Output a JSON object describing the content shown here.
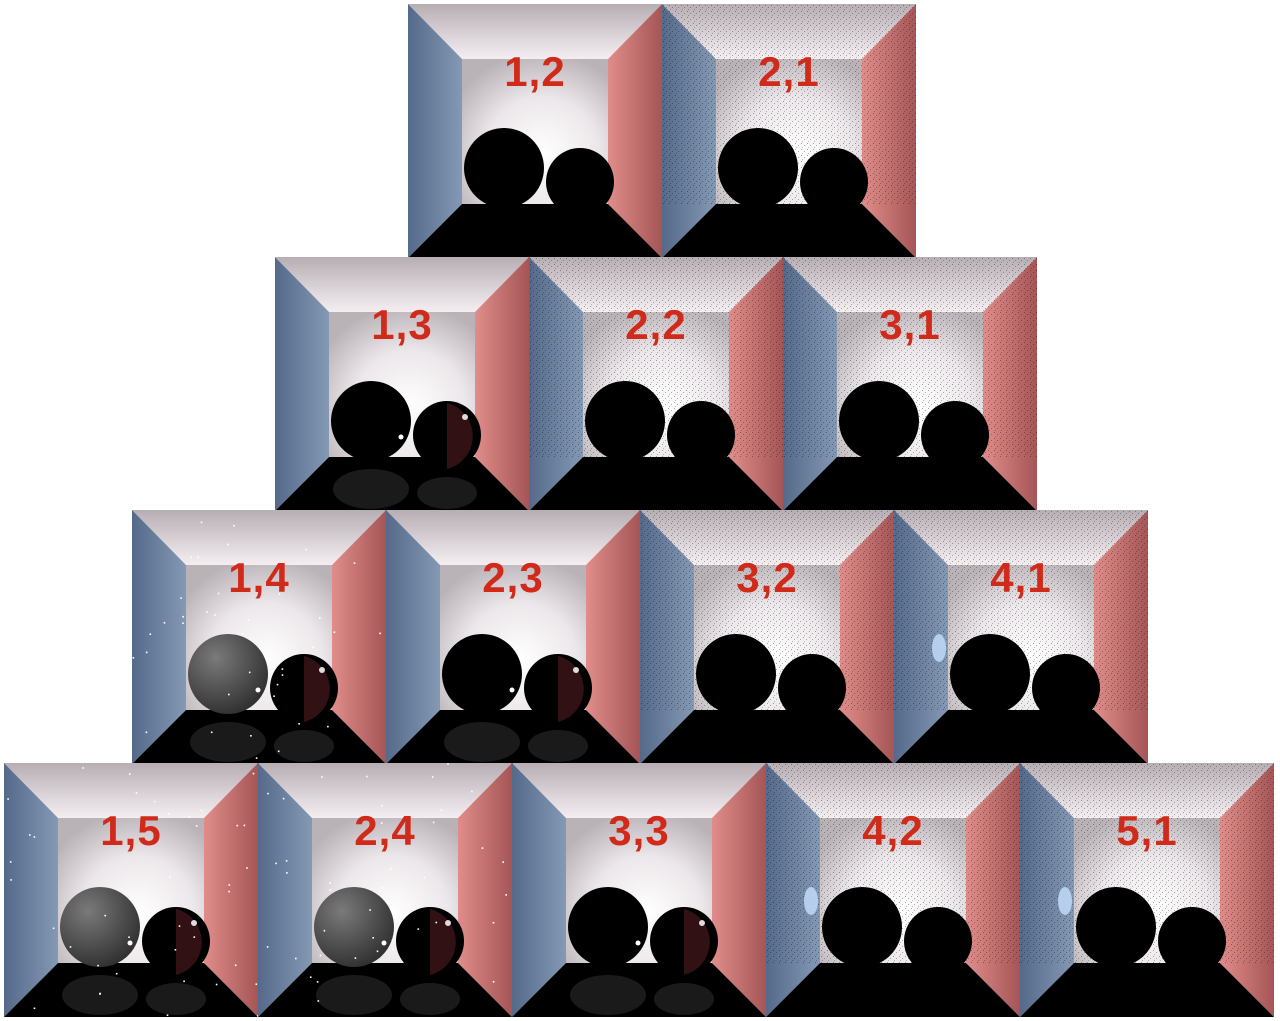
{
  "rows": [
    {
      "tiles": [
        {
          "label": "1,2",
          "variant": "a"
        },
        {
          "label": "2,1",
          "variant": "n"
        }
      ]
    },
    {
      "tiles": [
        {
          "label": "1,3",
          "variant": "g"
        },
        {
          "label": "2,2",
          "variant": "n"
        },
        {
          "label": "3,1",
          "variant": "n"
        }
      ]
    },
    {
      "tiles": [
        {
          "label": "1,4",
          "variant": "gs"
        },
        {
          "label": "2,3",
          "variant": "g"
        },
        {
          "label": "3,2",
          "variant": "n"
        },
        {
          "label": "4,1",
          "variant": "c"
        }
      ]
    },
    {
      "tiles": [
        {
          "label": "1,5",
          "variant": "gs"
        },
        {
          "label": "2,4",
          "variant": "gs"
        },
        {
          "label": "3,3",
          "variant": "g"
        },
        {
          "label": "4,2",
          "variant": "c"
        },
        {
          "label": "5,1",
          "variant": "c"
        }
      ]
    }
  ],
  "colors": {
    "label": "#d02b1a",
    "left_wall": "#6f89a6",
    "right_wall": "#c86b6b",
    "ceiling": "#efe6ea"
  }
}
